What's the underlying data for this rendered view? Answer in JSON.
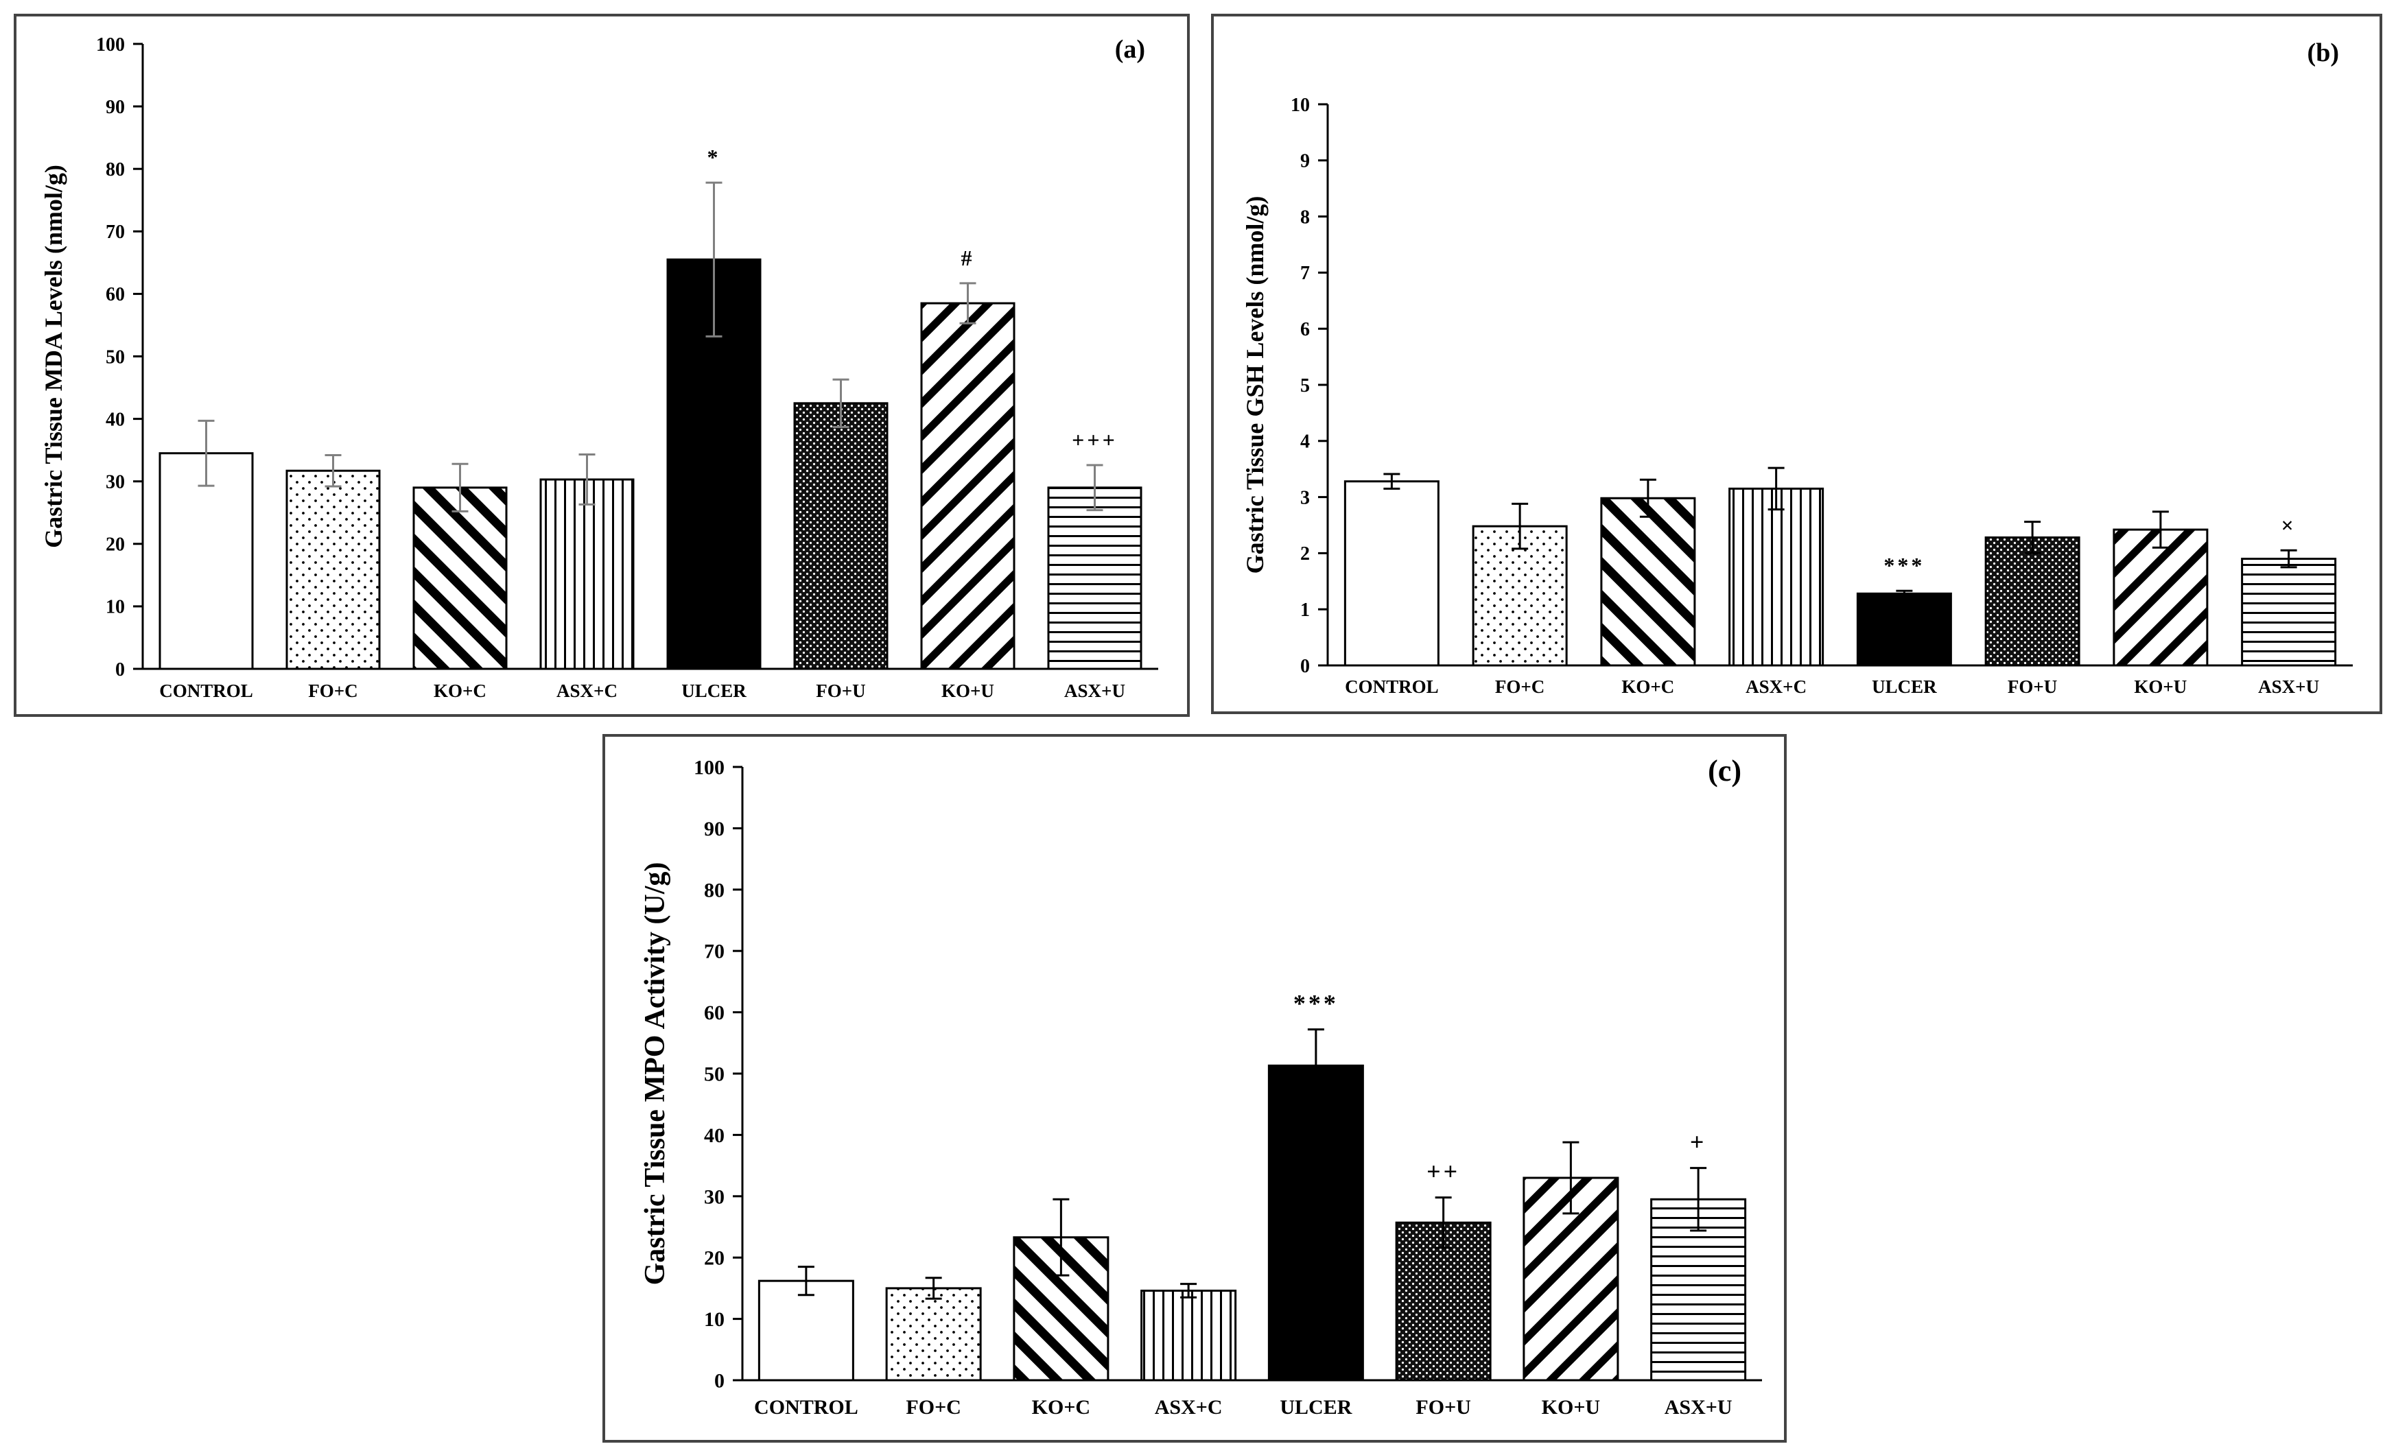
{
  "chart_data": [
    {
      "type": "bar",
      "id": "a",
      "panel_label": "(a)",
      "ylabel": "Gastric Tissue MDA Levels (nmol/g)",
      "categories": [
        "CONTROL",
        "FO+C",
        "KO+C",
        "ASX+C",
        "ULCER",
        "FO+U",
        "KO+U",
        "ASX+U"
      ],
      "values": [
        34.5,
        31.7,
        29.0,
        30.3,
        65.5,
        42.5,
        58.5,
        29.0
      ],
      "errors": [
        5.2,
        2.5,
        3.8,
        4.0,
        12.3,
        3.8,
        3.2,
        3.6
      ],
      "annotations": [
        "",
        "",
        "",
        "",
        "*",
        "",
        "#",
        "+++"
      ],
      "yticks": [
        "0",
        "10",
        "20",
        "30",
        "40",
        "50",
        "60",
        "70",
        "80",
        "90",
        "100"
      ],
      "ylim": [
        0,
        100
      ],
      "error_color": "#808080"
    },
    {
      "type": "bar",
      "id": "b",
      "panel_label": "(b)",
      "ylabel": "Gastric Tissue GSH Levels (nmol/g)",
      "categories": [
        "CONTROL",
        "FO+C",
        "KO+C",
        "ASX+C",
        "ULCER",
        "FO+U",
        "KO+U",
        "ASX+U"
      ],
      "values": [
        3.28,
        2.48,
        2.98,
        3.15,
        1.28,
        2.28,
        2.42,
        1.9
      ],
      "errors": [
        0.13,
        0.4,
        0.33,
        0.37,
        0.05,
        0.28,
        0.32,
        0.15
      ],
      "annotations": [
        "",
        "",
        "",
        "",
        "***",
        "",
        "",
        "×"
      ],
      "yticks": [
        "0",
        "1",
        "2",
        "3",
        "4",
        "5",
        "6",
        "7",
        "8",
        "9",
        "10"
      ],
      "ylim": [
        0,
        10
      ],
      "error_color": "#000000"
    },
    {
      "type": "bar",
      "id": "c",
      "panel_label": "(c)",
      "ylabel": "Gastric Tissue MPO Activity (U/g)",
      "categories": [
        "CONTROL",
        "FO+C",
        "KO+C",
        "ASX+C",
        "ULCER",
        "FO+U",
        "KO+U",
        "ASX+U"
      ],
      "values": [
        16.2,
        15.0,
        23.3,
        14.6,
        51.3,
        25.7,
        33.0,
        29.5
      ],
      "errors": [
        2.3,
        1.7,
        6.2,
        1.1,
        5.9,
        4.1,
        5.8,
        5.1
      ],
      "annotations": [
        "",
        "",
        "",
        "",
        "***",
        "++",
        "",
        "+"
      ],
      "yticks": [
        "0",
        "10",
        "20",
        "30",
        "40",
        "50",
        "60",
        "70",
        "80",
        "90",
        "100"
      ],
      "ylim": [
        0,
        100
      ],
      "error_color": "#000000"
    }
  ],
  "bar_patterns": [
    "blank",
    "dots",
    "diag-back",
    "vertical",
    "solid",
    "dense-dots",
    "diag-fwd",
    "horizontal"
  ],
  "colors": {
    "bar_stroke": "#000000",
    "axis": "#000000",
    "frame": "#444444",
    "fill": "#000000"
  }
}
